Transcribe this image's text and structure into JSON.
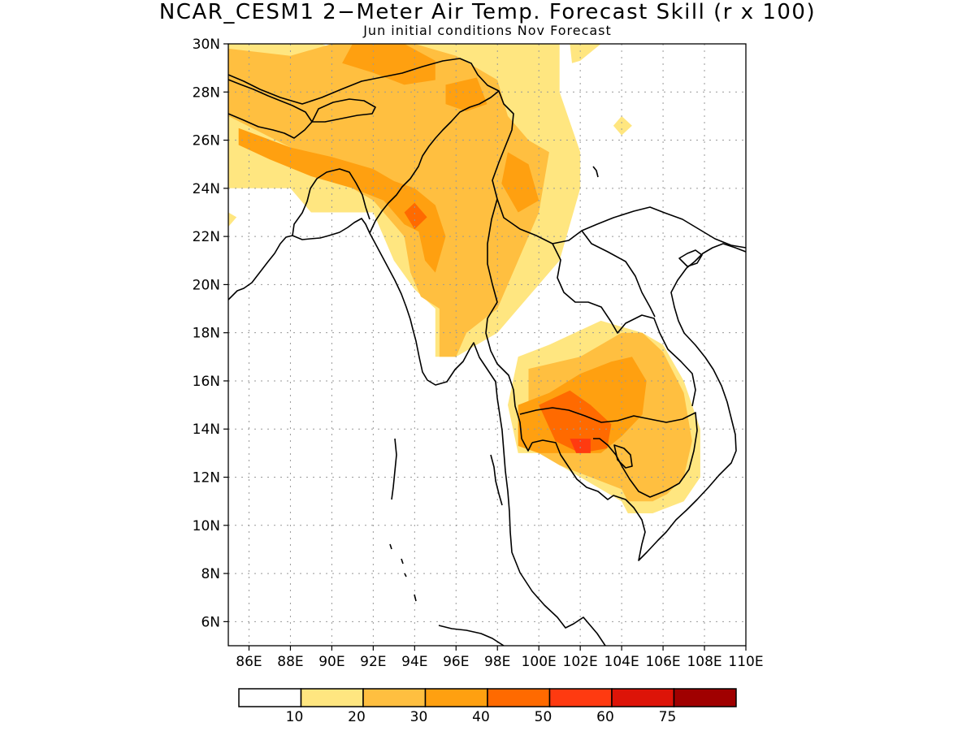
{
  "title": "NCAR_CESM1 2−Meter Air Temp. Forecast Skill (r x 100)",
  "subtitle": "Jun initial conditions  Nov Forecast",
  "axes": {
    "lat_labels": [
      "30N",
      "28N",
      "26N",
      "24N",
      "22N",
      "20N",
      "18N",
      "16N",
      "14N",
      "12N",
      "10N",
      "8N",
      "6N"
    ],
    "lon_labels": [
      "86E",
      "88E",
      "90E",
      "92E",
      "94E",
      "96E",
      "98E",
      "100E",
      "102E",
      "104E",
      "106E",
      "108E",
      "110E"
    ],
    "lat_range": [
      5,
      30
    ],
    "lon_range": [
      85,
      110
    ]
  },
  "colorbar": {
    "bins": [
      {
        "color": "#ffffff"
      },
      {
        "color": "#ffe680"
      },
      {
        "color": "#ffbf40"
      },
      {
        "color": "#ffa010"
      },
      {
        "color": "#ff6a00"
      },
      {
        "color": "#ff3a10"
      },
      {
        "color": "#dd1408"
      },
      {
        "color": "#a00000"
      }
    ],
    "labels": [
      "10",
      "20",
      "30",
      "40",
      "50",
      "60",
      "75"
    ]
  },
  "chart_data": {
    "type": "heatmap",
    "title": "NCAR_CESM1 2−Meter Air Temp. Forecast Skill (r x 100)",
    "subtitle": "Jun initial conditions  Nov Forecast",
    "xlim": [
      85,
      110
    ],
    "ylim": [
      5,
      30
    ],
    "levels": [
      10,
      20,
      30,
      40,
      50,
      60,
      75
    ],
    "regions": [
      {
        "level": 10,
        "polygon": [
          [
            85,
            30
          ],
          [
            89.5,
            30
          ],
          [
            91,
            29.5
          ],
          [
            94,
            30
          ],
          [
            96,
            30
          ],
          [
            99,
            30
          ],
          [
            101,
            30
          ],
          [
            101,
            28
          ],
          [
            102,
            25.5
          ],
          [
            102,
            24
          ],
          [
            101,
            21
          ],
          [
            99,
            19
          ],
          [
            98,
            18
          ],
          [
            96,
            17
          ],
          [
            95,
            17
          ],
          [
            95,
            19
          ],
          [
            94,
            19.8
          ],
          [
            93,
            21
          ],
          [
            92,
            23
          ],
          [
            89,
            23
          ],
          [
            88,
            24
          ],
          [
            85,
            24
          ]
        ]
      },
      {
        "level": 10,
        "polygon": [
          [
            85,
            23
          ],
          [
            85.4,
            22.8
          ],
          [
            85,
            22.4
          ]
        ]
      },
      {
        "level": 10,
        "polygon": [
          [
            101.5,
            30
          ],
          [
            103,
            30
          ],
          [
            102,
            29.3
          ],
          [
            101.6,
            29.2
          ]
        ]
      },
      {
        "level": 10,
        "polygon": [
          [
            104,
            27
          ],
          [
            104.5,
            26.6
          ],
          [
            104,
            26.2
          ],
          [
            103.6,
            26.6
          ]
        ]
      },
      {
        "level": 10,
        "polygon": [
          [
            99,
            17
          ],
          [
            100.5,
            17.5
          ],
          [
            103,
            18.5
          ],
          [
            105,
            18
          ],
          [
            106,
            17.5
          ],
          [
            107,
            16
          ],
          [
            107.8,
            14
          ],
          [
            107.8,
            12
          ],
          [
            107,
            11
          ],
          [
            105.5,
            10.5
          ],
          [
            104.3,
            10.5
          ],
          [
            104,
            11
          ],
          [
            102,
            12
          ],
          [
            100,
            13
          ],
          [
            99,
            13
          ],
          [
            98.5,
            15
          ]
        ]
      },
      {
        "level": 20,
        "polygon": [
          [
            85,
            29.8
          ],
          [
            88,
            29.5
          ],
          [
            90,
            30
          ],
          [
            94,
            30
          ],
          [
            96,
            29.5
          ],
          [
            98,
            28.5
          ],
          [
            98.5,
            27
          ],
          [
            99.5,
            26
          ],
          [
            100.5,
            25.5
          ],
          [
            100,
            23
          ],
          [
            99,
            21
          ],
          [
            98,
            19
          ],
          [
            96.5,
            18
          ],
          [
            96,
            17
          ],
          [
            95.2,
            17
          ],
          [
            95.2,
            19
          ],
          [
            94.3,
            19.5
          ],
          [
            93.8,
            20.5
          ],
          [
            93.5,
            22
          ],
          [
            92.5,
            23
          ],
          [
            92,
            23.5
          ],
          [
            89,
            25
          ],
          [
            88,
            25.7
          ],
          [
            85,
            27
          ]
        ]
      },
      {
        "level": 20,
        "polygon": [
          [
            99.5,
            16.5
          ],
          [
            102,
            17
          ],
          [
            104,
            18
          ],
          [
            105,
            18
          ],
          [
            106,
            17.2
          ],
          [
            107,
            15.5
          ],
          [
            107.4,
            13.5
          ],
          [
            107,
            12
          ],
          [
            106.2,
            11.3
          ],
          [
            105.5,
            11
          ],
          [
            104.3,
            11
          ],
          [
            104,
            11.5
          ],
          [
            102.5,
            12
          ],
          [
            101,
            12.5
          ],
          [
            100,
            13
          ],
          [
            99.5,
            14
          ]
        ]
      },
      {
        "level": 30,
        "polygon": [
          [
            91,
            30
          ],
          [
            93.5,
            30
          ],
          [
            95,
            29.3
          ],
          [
            95,
            28.5
          ],
          [
            93.5,
            28.3
          ],
          [
            92,
            28.8
          ],
          [
            90.5,
            29.2
          ]
        ]
      },
      {
        "level": 30,
        "polygon": [
          [
            95.5,
            28.3
          ],
          [
            97,
            28.6
          ],
          [
            97.5,
            27.5
          ],
          [
            96.5,
            27.2
          ],
          [
            95.5,
            27.5
          ]
        ]
      },
      {
        "level": 30,
        "polygon": [
          [
            85.5,
            26.5
          ],
          [
            88,
            25.7
          ],
          [
            90,
            25.3
          ],
          [
            92,
            24.8
          ],
          [
            93,
            24.3
          ],
          [
            94,
            24
          ],
          [
            95,
            23.3
          ],
          [
            95.5,
            22
          ],
          [
            95,
            20.5
          ],
          [
            94.5,
            21
          ],
          [
            94.2,
            22.2
          ],
          [
            93.5,
            22.5
          ],
          [
            92.5,
            23.5
          ],
          [
            91,
            24
          ],
          [
            89,
            24.5
          ],
          [
            87,
            25.2
          ],
          [
            85.5,
            25.8
          ]
        ]
      },
      {
        "level": 30,
        "polygon": [
          [
            98.5,
            25.5
          ],
          [
            99.5,
            25
          ],
          [
            100,
            23.5
          ],
          [
            99,
            23
          ],
          [
            98.2,
            24.2
          ]
        ]
      },
      {
        "level": 30,
        "polygon": [
          [
            99,
            15
          ],
          [
            100.5,
            15.5
          ],
          [
            102,
            16.3
          ],
          [
            103.5,
            16.8
          ],
          [
            104.5,
            17
          ],
          [
            105.2,
            16
          ],
          [
            105,
            14.6
          ],
          [
            104,
            13.7
          ],
          [
            103,
            13
          ],
          [
            101.5,
            13
          ],
          [
            100,
            13
          ],
          [
            99,
            13.3
          ]
        ]
      },
      {
        "level": 40,
        "polygon": [
          [
            100,
            15
          ],
          [
            101.5,
            15.6
          ],
          [
            102.5,
            15
          ],
          [
            103.5,
            14.2
          ],
          [
            103.3,
            13.2
          ],
          [
            102,
            13
          ],
          [
            100.8,
            13.5
          ]
        ]
      },
      {
        "level": 40,
        "polygon": [
          [
            93.5,
            23
          ],
          [
            94,
            23.4
          ],
          [
            94.6,
            22.8
          ],
          [
            94,
            22.3
          ]
        ]
      },
      {
        "level": 50,
        "polygon": [
          [
            101.5,
            13.6
          ],
          [
            102.5,
            13.6
          ],
          [
            102.5,
            13
          ],
          [
            101.8,
            13
          ]
        ]
      }
    ]
  }
}
